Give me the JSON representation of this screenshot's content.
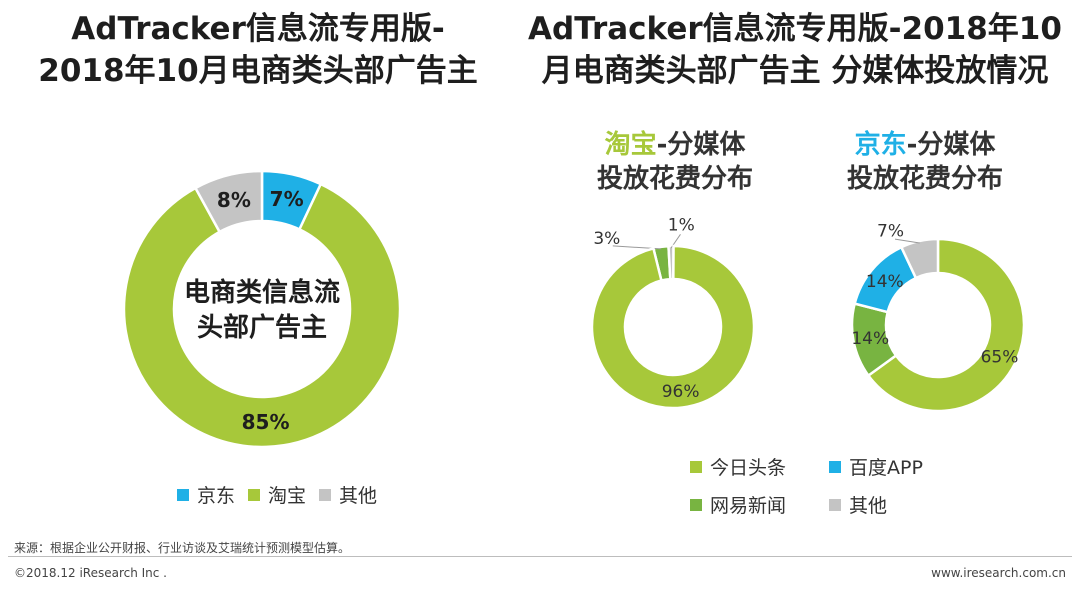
{
  "colors": {
    "jd": "#1fb0e6",
    "taobao": "#a7c83a",
    "other": "#c4c4c4",
    "toutiao": "#a7c83a",
    "baidu": "#1fb0e6",
    "netease": "#78b441"
  },
  "titles": {
    "left": [
      "AdTracker信息流专用版-",
      "2018年10月电商类头部广告主"
    ],
    "right": [
      "AdTracker信息流专用版-2018年10",
      "月电商类头部广告主 分媒体投放情况"
    ]
  },
  "subtitles": {
    "taobao": {
      "brand": "淘宝",
      "line1_rest": "-分媒体",
      "line2": "投放花费分布"
    },
    "jd": {
      "brand": "京东",
      "line1_rest": "-分媒体",
      "line2": "投放花费分布"
    }
  },
  "center_label": [
    "电商类信息流",
    "头部广告主"
  ],
  "legend_left": [
    "京东",
    "淘宝",
    "其他"
  ],
  "legend_right": [
    "今日头条",
    "百度APP",
    "网易新闻",
    "其他"
  ],
  "source": "来源：根据企业公开财报、行业访谈及艾瑞统计预测模型估算。",
  "copyright": "©2018.12 iResearch Inc .",
  "website": "www.iresearch.com.cn",
  "chart_data": [
    {
      "type": "pie",
      "title": "AdTracker信息流专用版-2018年10月电商类头部广告主",
      "center_text": "电商类信息流头部广告主",
      "categories": [
        "京东",
        "淘宝",
        "其他"
      ],
      "values": [
        7,
        85,
        8
      ],
      "labels": [
        "7%",
        "85%",
        "8%"
      ],
      "legend": "bottom"
    },
    {
      "type": "pie",
      "title": "淘宝-分媒体投放花费分布",
      "categories": [
        "其他",
        "网易新闻",
        "今日头条"
      ],
      "values": [
        1,
        3,
        96
      ],
      "labels": [
        "1%",
        "3%",
        "96%"
      ],
      "legend": "bottom"
    },
    {
      "type": "pie",
      "title": "京东-分媒体投放花费分布",
      "categories": [
        "今日头条",
        "网易新闻",
        "百度APP",
        "其他"
      ],
      "values": [
        65,
        14,
        14,
        7
      ],
      "labels": [
        "65%",
        "14%",
        "14%",
        "7%"
      ],
      "legend": "bottom"
    }
  ]
}
